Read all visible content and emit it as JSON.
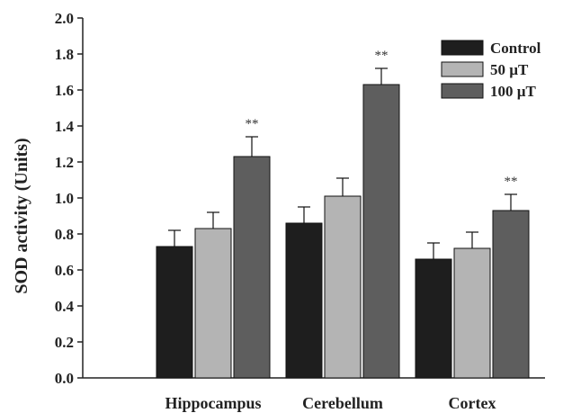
{
  "chart_data": {
    "type": "bar",
    "title": "",
    "xlabel": "",
    "ylabel": "SOD activity (Units)",
    "ylim": [
      0,
      2.0
    ],
    "yticks": [
      "0.0",
      "0.2",
      "0.4",
      "0.6",
      "0.8",
      "1.0",
      "1.2",
      "1.4",
      "1.6",
      "1.8",
      "2.0"
    ],
    "categories": [
      "Hippocampus",
      "Cerebellum",
      "Cortex"
    ],
    "legend_position": "top-right",
    "grid": false,
    "series": [
      {
        "name": "Control",
        "color": "#1e1e1e",
        "values": [
          0.73,
          0.86,
          0.66
        ],
        "errors": [
          0.09,
          0.09,
          0.09
        ],
        "annotations": [
          "",
          "",
          ""
        ]
      },
      {
        "name": "50 µT",
        "color": "#b4b4b4",
        "values": [
          0.83,
          1.01,
          0.72
        ],
        "errors": [
          0.09,
          0.1,
          0.09
        ],
        "annotations": [
          "",
          "",
          ""
        ]
      },
      {
        "name": "100 µT",
        "color": "#5e5e5e",
        "values": [
          1.23,
          1.63,
          0.93
        ],
        "errors": [
          0.11,
          0.09,
          0.09
        ],
        "annotations": [
          "**",
          "**",
          "**"
        ]
      }
    ]
  }
}
